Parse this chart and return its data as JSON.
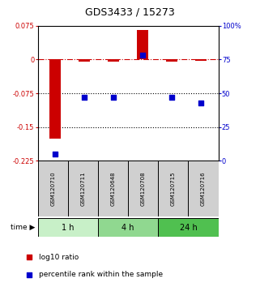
{
  "title": "GDS3433 / 15273",
  "samples": [
    "GSM120710",
    "GSM120711",
    "GSM120648",
    "GSM120708",
    "GSM120715",
    "GSM120716"
  ],
  "log10_ratio": [
    -0.175,
    -0.004,
    -0.004,
    0.065,
    -0.004,
    -0.003
  ],
  "percentile_rank": [
    5,
    47,
    47,
    78,
    47,
    43
  ],
  "ylim_left": [
    -0.225,
    0.075
  ],
  "ylim_right": [
    0,
    100
  ],
  "yticks_left": [
    0.075,
    0,
    -0.075,
    -0.15,
    -0.225
  ],
  "yticks_right": [
    100,
    75,
    50,
    25,
    0
  ],
  "ytick_labels_left": [
    "0.075",
    "0",
    "-0.075",
    "-0.15",
    "-0.225"
  ],
  "ytick_labels_right": [
    "100%",
    "75",
    "50",
    "25",
    "0"
  ],
  "hlines_dotted": [
    -0.075,
    -0.15
  ],
  "hline_dashdot": 0,
  "time_groups": [
    {
      "label": "1 h",
      "samples": [
        "GSM120710",
        "GSM120711"
      ],
      "color": "#c8f0c8"
    },
    {
      "label": "4 h",
      "samples": [
        "GSM120648",
        "GSM120708"
      ],
      "color": "#90d890"
    },
    {
      "label": "24 h",
      "samples": [
        "GSM120715",
        "GSM120716"
      ],
      "color": "#50c050"
    }
  ],
  "bar_color": "#cc0000",
  "dot_color": "#0000cc",
  "bar_width": 0.4,
  "dot_size": 18,
  "legend_entries": [
    "log10 ratio",
    "percentile rank within the sample"
  ],
  "time_label": "time",
  "background_color": "#ffffff",
  "sample_box_color": "#d0d0d0"
}
